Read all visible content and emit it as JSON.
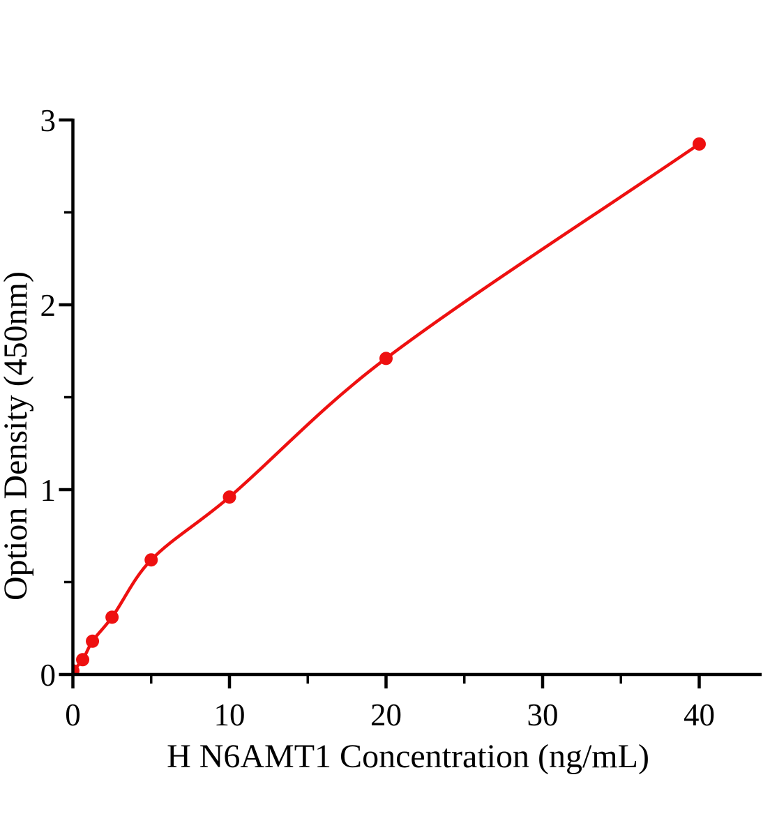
{
  "figure": {
    "background": "#ffffff",
    "axis_color": "#000000",
    "accent_color": "#ee1010"
  },
  "chart_data": {
    "type": "scatter",
    "subtype": "standard-curve-with-fit-line",
    "title": "",
    "xlabel": "H N6AMT1 Concentration (ng/mL)",
    "ylabel": "Option Density (450nm)",
    "x": [
      0,
      0.625,
      1.25,
      2.5,
      5,
      10,
      20,
      40
    ],
    "y": [
      0.02,
      0.08,
      0.18,
      0.31,
      0.62,
      0.96,
      1.71,
      2.87
    ],
    "xlim": [
      0,
      44
    ],
    "ylim": [
      0,
      3
    ],
    "x_major_ticks": [
      0,
      10,
      20,
      30,
      40
    ],
    "x_minor_ticks": [
      5,
      15,
      25,
      35
    ],
    "y_major_ticks": [
      0,
      1,
      2,
      3
    ],
    "y_minor_ticks": [
      0.5,
      1.5,
      2.5
    ],
    "x_tick_labels": [
      "0",
      "10",
      "20",
      "30",
      "40"
    ],
    "y_tick_labels": [
      "0",
      "1",
      "2",
      "3"
    ],
    "grid": false,
    "legend": "none",
    "marker": "filled-circle",
    "line_style": "solid-smooth",
    "line_color": "#ee1010",
    "marker_color": "#ee1010"
  }
}
